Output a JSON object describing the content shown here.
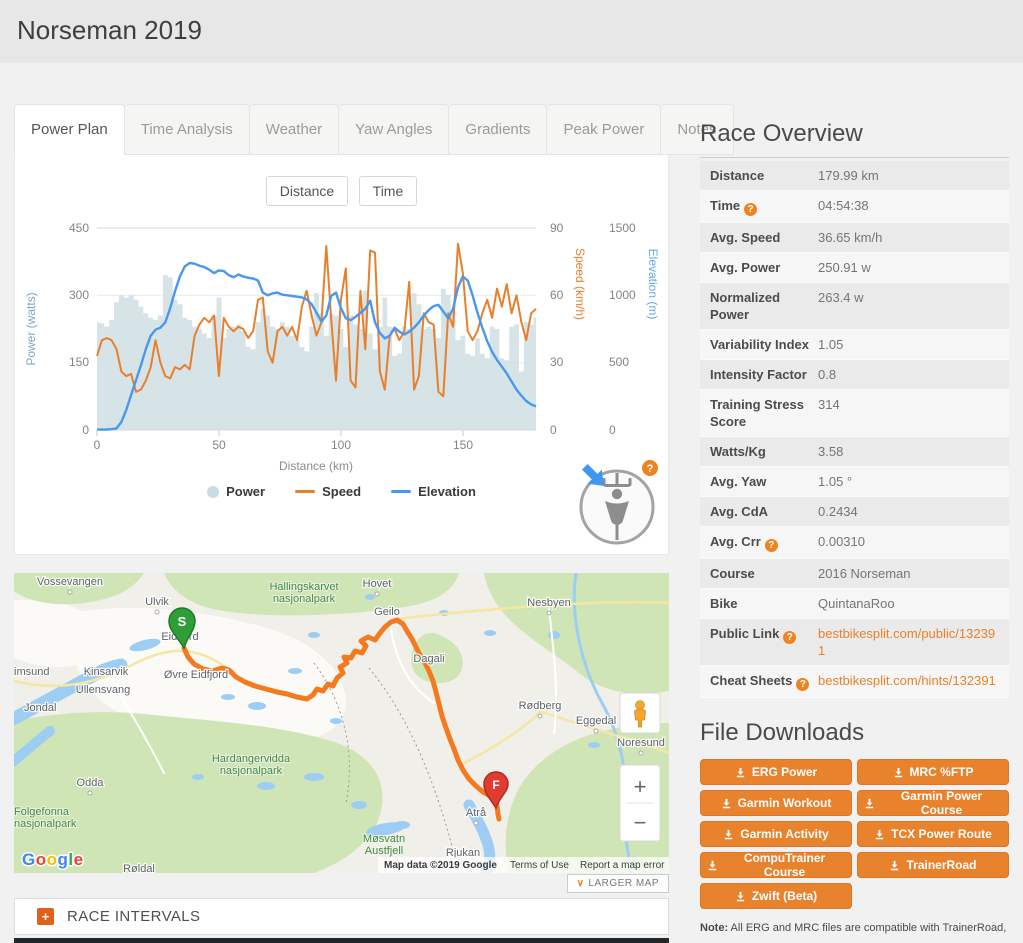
{
  "page": {
    "title": "Norseman 2019"
  },
  "tabs": [
    {
      "label": "Power Plan",
      "active": true
    },
    {
      "label": "Time Analysis"
    },
    {
      "label": "Weather"
    },
    {
      "label": "Yaw Angles"
    },
    {
      "label": "Gradients"
    },
    {
      "label": "Peak Power"
    },
    {
      "label": "Notes"
    }
  ],
  "chart_panel": {
    "toggle_distance": "Distance",
    "toggle_time": "Time"
  },
  "chart_data": {
    "type": "line+area",
    "x_label": "Distance (km)",
    "x_ticks": [
      0,
      50,
      100,
      150
    ],
    "x_max": 180,
    "grid": "horizontal",
    "legend_position": "bottom",
    "legend": [
      "Power",
      "Speed",
      "Elevation"
    ],
    "y_power": {
      "label": "Power (watts)",
      "ticks": [
        450,
        300,
        150,
        0
      ],
      "max": 450
    },
    "y_speed": {
      "label": "Speed (km/h)",
      "ticks": [
        90,
        60,
        30,
        0
      ],
      "max": 90
    },
    "y_elev": {
      "label": "Elevation (m)",
      "ticks": [
        1500,
        1000,
        500,
        0
      ],
      "max": 1500
    },
    "x": [
      0,
      2,
      4,
      6,
      8,
      10,
      12,
      14,
      16,
      18,
      20,
      22,
      24,
      26,
      28,
      30,
      32,
      34,
      36,
      38,
      40,
      42,
      44,
      46,
      48,
      50,
      52,
      54,
      56,
      58,
      60,
      62,
      64,
      66,
      68,
      70,
      72,
      74,
      76,
      78,
      80,
      82,
      84,
      86,
      88,
      90,
      92,
      94,
      96,
      98,
      100,
      102,
      104,
      106,
      108,
      110,
      112,
      114,
      116,
      118,
      120,
      122,
      124,
      126,
      128,
      130,
      132,
      134,
      136,
      138,
      140,
      142,
      144,
      146,
      148,
      150,
      152,
      154,
      156,
      158,
      160,
      162,
      164,
      166,
      168,
      170,
      172,
      174,
      176,
      178,
      180
    ],
    "power": [
      240,
      238,
      230,
      245,
      285,
      300,
      295,
      300,
      290,
      275,
      260,
      250,
      245,
      255,
      345,
      340,
      290,
      280,
      250,
      245,
      230,
      225,
      215,
      205,
      255,
      295,
      205,
      225,
      230,
      235,
      220,
      185,
      180,
      240,
      270,
      255,
      230,
      225,
      240,
      230,
      210,
      200,
      185,
      175,
      230,
      305,
      260,
      210,
      260,
      255,
      225,
      185,
      255,
      235,
      225,
      310,
      215,
      180,
      230,
      295,
      230,
      165,
      170,
      230,
      225,
      305,
      280,
      225,
      230,
      225,
      205,
      315,
      300,
      265,
      200,
      210,
      170,
      165,
      205,
      170,
      160,
      230,
      225,
      160,
      155,
      230,
      235,
      130,
      240,
      235,
      250
    ],
    "speed": [
      33,
      40,
      41,
      40,
      36,
      26,
      24,
      25,
      17,
      18,
      22,
      28,
      40,
      30,
      24,
      23,
      28,
      27,
      29,
      27,
      42,
      47,
      50,
      48,
      51,
      24,
      50,
      46,
      44,
      46,
      45,
      41,
      44,
      58,
      59,
      35,
      30,
      44,
      46,
      42,
      46,
      40,
      55,
      62,
      51,
      42,
      48,
      82,
      50,
      22,
      58,
      72,
      22,
      19,
      62,
      36,
      80,
      79,
      26,
      18,
      42,
      45,
      40,
      44,
      66,
      18,
      24,
      52,
      48,
      47,
      17,
      15,
      52,
      46,
      83,
      70,
      44,
      40,
      44,
      52,
      58,
      50,
      63,
      55,
      65,
      52,
      60,
      48,
      40,
      52,
      54
    ],
    "elevation": [
      3,
      3,
      4,
      6,
      12,
      60,
      150,
      260,
      370,
      480,
      600,
      700,
      745,
      760,
      800,
      905,
      1030,
      1140,
      1215,
      1240,
      1235,
      1220,
      1210,
      1190,
      1165,
      1185,
      1180,
      1150,
      1135,
      1155,
      1140,
      1130,
      1125,
      1110,
      1020,
      1000,
      1015,
      1020,
      1005,
      1000,
      995,
      990,
      985,
      970,
      935,
      870,
      805,
      850,
      995,
      1020,
      905,
      830,
      815,
      840,
      870,
      900,
      960,
      800,
      720,
      680,
      700,
      760,
      730,
      710,
      730,
      760,
      800,
      850,
      890,
      920,
      930,
      880,
      830,
      900,
      1060,
      1140,
      1110,
      1000,
      870,
      760,
      660,
      580,
      520,
      470,
      420,
      360,
      300,
      255,
      215,
      190,
      175
    ]
  },
  "colors": {
    "accent_orange": "#e8822c",
    "speed_line": "#e87f2d",
    "elevation_line": "#4a97ee",
    "power_fill": "#cfdfe4",
    "route": "#f4791f",
    "start_marker": "#2f9e38",
    "finish_marker": "#e03c31",
    "link": "#e8822c"
  },
  "map": {
    "towns": {
      "vossevangen": "Vossevangen",
      "ulvik": "Ulvik",
      "hovet": "Hovet",
      "nesbyen": "Nesbyen",
      "geilo": "Geilo",
      "eidfjord": "Eidfjord",
      "kinsarvik": "Kinsarvik",
      "ovre_eidfjord": "Øvre Eidfjord",
      "ullensvang": "Ullensvang",
      "imsund": "imsund",
      "jondal": "Jondal",
      "rodberg": "Rødberg",
      "eggedal": "Eggedal",
      "noresund": "Noresund",
      "odda": "Odda",
      "rjukan": "Rjukan",
      "atra": "Atrå",
      "roldal": "Røldal",
      "dagali": "Dagali"
    },
    "parks": {
      "hallingskarvet_1": "Hallingskarvet",
      "hallingskarvet_2": "nasjonalpark",
      "hardangervidda_1": "Hardangervidda",
      "hardangervidda_2": "nasjonalpark",
      "folgefonna_1": "Folgefonna",
      "folgefonna_2": "nasjonalpark",
      "mosvatn_1": "Møsvatn",
      "mosvatn_2": "Austfjell"
    },
    "markers": {
      "start": "S",
      "finish": "F"
    },
    "google": [
      "G",
      "o",
      "o",
      "g",
      "l",
      "e"
    ],
    "attribution": {
      "map_data": "Map data ©2019 Google",
      "terms": "Terms of Use",
      "report": "Report a map error"
    },
    "larger_map": "LARGER MAP",
    "zoom_in": "+",
    "zoom_out": "−"
  },
  "race_overview": {
    "title": "Race Overview",
    "rows": [
      {
        "label": "Distance",
        "value": "179.99 km"
      },
      {
        "label": "Time",
        "value": "04:54:38",
        "help": true
      },
      {
        "label": "Avg. Speed",
        "value": "36.65 km/h"
      },
      {
        "label": "Avg. Power",
        "value": "250.91 w"
      },
      {
        "label": "Normalized Power",
        "value": "263.4 w"
      },
      {
        "label": "Variability Index",
        "value": "1.05"
      },
      {
        "label": "Intensity Factor",
        "value": "0.8"
      },
      {
        "label": "Training Stress Score",
        "value": "314"
      },
      {
        "label": "Watts/Kg",
        "value": "3.58"
      },
      {
        "label": "Avg. Yaw",
        "value": "1.05 °"
      },
      {
        "label": "Avg. CdA",
        "value": "0.2434"
      },
      {
        "label": "Avg. Crr",
        "value": "0.00310",
        "help": true
      },
      {
        "label": "Course",
        "value": "2016 Norseman"
      },
      {
        "label": "Bike",
        "value": "QuintanaRoo"
      },
      {
        "label": "Public Link",
        "value": "bestbikesplit.com/public/132391",
        "help": true,
        "link": true
      },
      {
        "label": "Cheat Sheets",
        "value": "bestbikesplit.com/hints/132391",
        "help": true,
        "link": true
      }
    ]
  },
  "downloads": {
    "title": "File Downloads",
    "buttons": [
      "ERG Power",
      "MRC %FTP",
      "Garmin Workout",
      "Garmin Power Course",
      "Garmin Activity",
      "TCX Power Route",
      "CompuTrainer Course",
      "TrainerRoad",
      "Zwift (Beta)"
    ]
  },
  "note": {
    "prefix": "Note:",
    "text": " All ERG and MRC files are compatible with TrainerRoad,"
  },
  "race_intervals": {
    "label": "RACE INTERVALS"
  },
  "icons": {
    "help": "?",
    "plus": "+",
    "chevron_down": "∨"
  }
}
